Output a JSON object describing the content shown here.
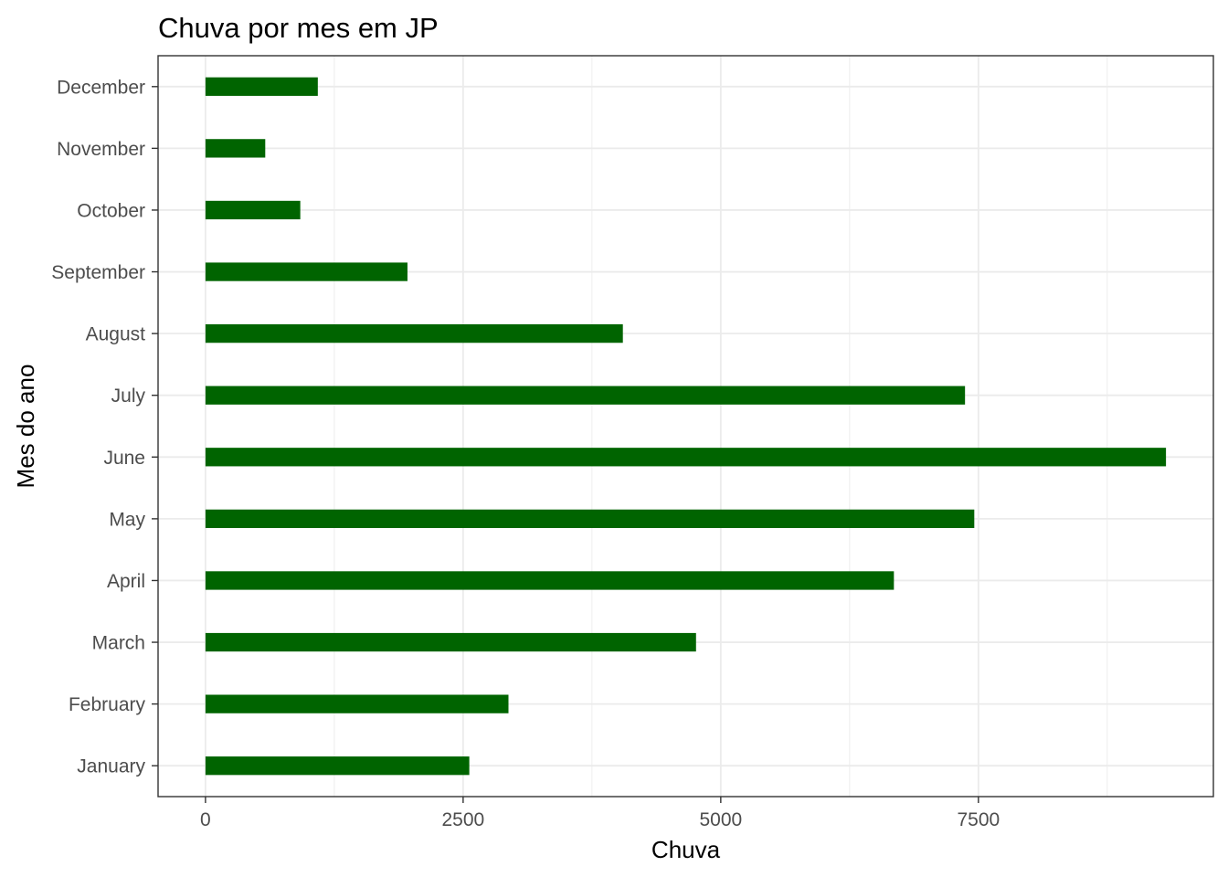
{
  "chart_data": {
    "type": "bar",
    "orientation": "horizontal",
    "title": "Chuva por mes em JP",
    "xlabel": "Chuva",
    "ylabel": "Mes do ano",
    "categories": [
      "January",
      "February",
      "March",
      "April",
      "May",
      "June",
      "July",
      "August",
      "September",
      "October",
      "November",
      "December"
    ],
    "values": [
      2560,
      2940,
      4760,
      6680,
      7460,
      9320,
      7370,
      4050,
      1960,
      920,
      580,
      1090
    ],
    "xticks": [
      "0",
      "2500",
      "5000",
      "7500"
    ],
    "xlim": [
      -460,
      9780
    ],
    "bar_color": "#006400",
    "grid": true,
    "legend": false
  }
}
